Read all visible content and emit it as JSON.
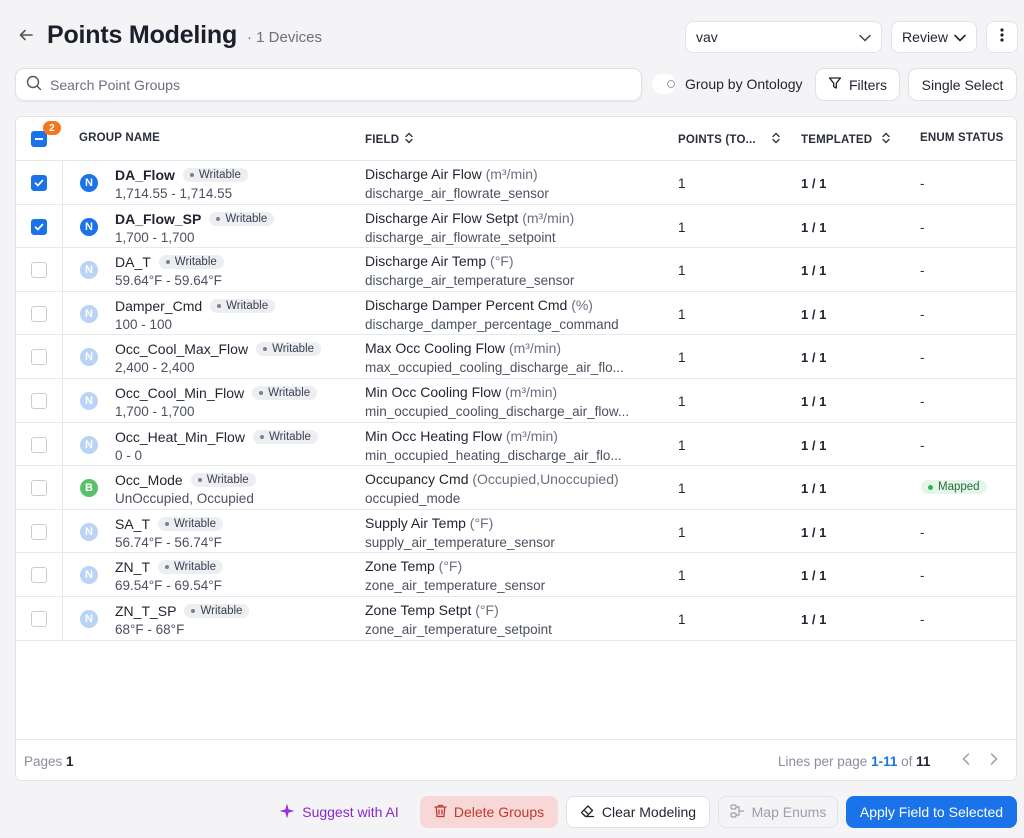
{
  "header": {
    "title": "Points Modeling",
    "subtitle": "· 1 Devices",
    "device_select_value": "vav",
    "review_label": "Review"
  },
  "toolbar": {
    "search_placeholder": "Search Point Groups",
    "group_by_label": "Group by Ontology",
    "filters_label": "Filters",
    "single_select_label": "Single Select"
  },
  "table": {
    "selected_count": "2",
    "columns": {
      "group_name": "GROUP NAME",
      "field": "FIELD",
      "points": "POINTS (TO...",
      "templated": "TEMPLATED",
      "enum_status": "ENUM STATUS"
    },
    "rows": [
      {
        "checked": true,
        "badge": "N",
        "name": "DA_Flow",
        "tag": "Writable",
        "range": "1,714.55 - 1,714.55",
        "field": "Discharge Air Flow",
        "unit": "(m³/min)",
        "field_id": "discharge_air_flowrate_sensor",
        "points": "1",
        "templated": "1 / 1",
        "enum": "-"
      },
      {
        "checked": true,
        "badge": "N",
        "name": "DA_Flow_SP",
        "tag": "Writable",
        "range": "1,700 - 1,700",
        "field": "Discharge Air Flow Setpt",
        "unit": "(m³/min)",
        "field_id": "discharge_air_flowrate_setpoint",
        "points": "1",
        "templated": "1 / 1",
        "enum": "-"
      },
      {
        "checked": false,
        "badge": "N",
        "name": "DA_T",
        "tag": "Writable",
        "range": "59.64°F - 59.64°F",
        "field": "Discharge Air Temp",
        "unit": "(°F)",
        "field_id": "discharge_air_temperature_sensor",
        "points": "1",
        "templated": "1 / 1",
        "enum": "-"
      },
      {
        "checked": false,
        "badge": "N",
        "name": "Damper_Cmd",
        "tag": "Writable",
        "range": "100 - 100",
        "field": "Discharge Damper Percent Cmd",
        "unit": "(%)",
        "field_id": "discharge_damper_percentage_command",
        "points": "1",
        "templated": "1 / 1",
        "enum": "-"
      },
      {
        "checked": false,
        "badge": "N",
        "name": "Occ_Cool_Max_Flow",
        "tag": "Writable",
        "range": "2,400 - 2,400",
        "field": "Max Occ Cooling Flow",
        "unit": "(m³/min)",
        "field_id": "max_occupied_cooling_discharge_air_flo...",
        "points": "1",
        "templated": "1 / 1",
        "enum": "-"
      },
      {
        "checked": false,
        "badge": "N",
        "name": "Occ_Cool_Min_Flow",
        "tag": "Writable",
        "range": "1,700 - 1,700",
        "field": "Min Occ Cooling Flow",
        "unit": "(m³/min)",
        "field_id": "min_occupied_cooling_discharge_air_flow...",
        "points": "1",
        "templated": "1 / 1",
        "enum": "-"
      },
      {
        "checked": false,
        "badge": "N",
        "name": "Occ_Heat_Min_Flow",
        "tag": "Writable",
        "range": "0 - 0",
        "field": "Min Occ Heating Flow",
        "unit": "(m³/min)",
        "field_id": "min_occupied_heating_discharge_air_flo...",
        "points": "1",
        "templated": "1 / 1",
        "enum": "-"
      },
      {
        "checked": false,
        "badge": "B",
        "name": "Occ_Mode",
        "tag": "Writable",
        "range": "UnOccupied, Occupied",
        "field": "Occupancy Cmd",
        "unit": "(Occupied,Unoccupied)",
        "field_id": "occupied_mode",
        "points": "1",
        "templated": "1 / 1",
        "enum": "Mapped"
      },
      {
        "checked": false,
        "badge": "N",
        "name": "SA_T",
        "tag": "Writable",
        "range": "56.74°F - 56.74°F",
        "field": "Supply Air Temp",
        "unit": "(°F)",
        "field_id": "supply_air_temperature_sensor",
        "points": "1",
        "templated": "1 / 1",
        "enum": "-"
      },
      {
        "checked": false,
        "badge": "N",
        "name": "ZN_T",
        "tag": "Writable",
        "range": "69.54°F - 69.54°F",
        "field": "Zone Temp",
        "unit": "(°F)",
        "field_id": "zone_air_temperature_sensor",
        "points": "1",
        "templated": "1 / 1",
        "enum": "-"
      },
      {
        "checked": false,
        "badge": "N",
        "name": "ZN_T_SP",
        "tag": "Writable",
        "range": "68°F - 68°F",
        "field": "Zone Temp Setpt",
        "unit": "(°F)",
        "field_id": "zone_air_temperature_setpoint",
        "points": "1",
        "templated": "1 / 1",
        "enum": "-"
      }
    ]
  },
  "footer": {
    "pages_label": "Pages",
    "pages_value": "1",
    "lines_label": "Lines per page",
    "lines_range": "1-11",
    "of_label": "of",
    "lines_total": "11"
  },
  "actions": {
    "suggest_ai": "Suggest with AI",
    "delete_groups": "Delete Groups",
    "clear_modeling": "Clear Modeling",
    "map_enums": "Map Enums",
    "apply_field": "Apply Field to Selected"
  },
  "colors": {
    "accent": "#1a73e8",
    "danger": "#c0392b",
    "ai": "#8a28c8",
    "count_badge": "#f2761f",
    "mapped": "#2fb35a"
  }
}
